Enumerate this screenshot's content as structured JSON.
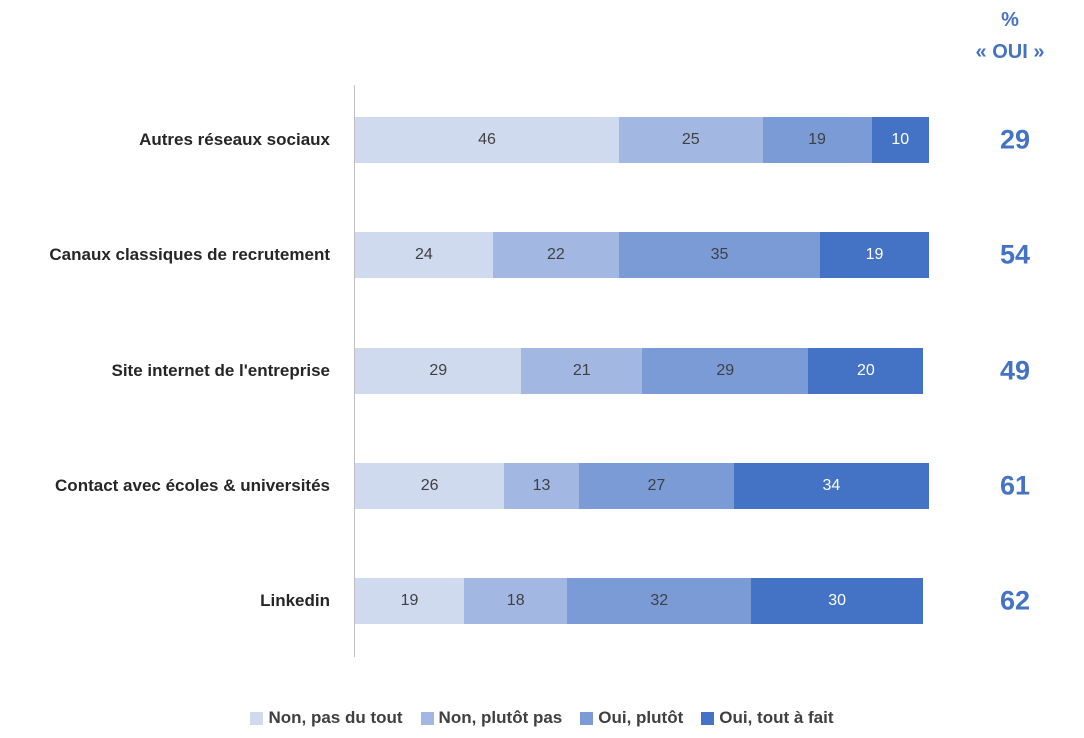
{
  "chart_data": {
    "type": "stacked-bar-horizontal",
    "categories": [
      "Autres réseaux sociaux",
      "Canaux classiques de recrutement",
      "Site internet de l'entreprise",
      "Contact avec écoles & universités",
      "Linkedin"
    ],
    "series": [
      {
        "name": "Non, pas du tout",
        "color": "#cfdaef",
        "values": [
          46,
          24,
          29,
          26,
          19
        ]
      },
      {
        "name": "Non, plutôt pas",
        "color": "#a2b8e2",
        "values": [
          25,
          22,
          21,
          13,
          18
        ]
      },
      {
        "name": "Oui, plutôt",
        "color": "#7b9bd7",
        "values": [
          19,
          35,
          29,
          27,
          32
        ]
      },
      {
        "name": "Oui, tout à fait",
        "color": "#4472c4",
        "values": [
          10,
          19,
          20,
          34,
          30
        ]
      }
    ],
    "xlim": [
      0,
      100
    ],
    "yes_header": [
      "%",
      "« OUI »"
    ],
    "yes_totals": [
      29,
      54,
      49,
      61,
      62
    ],
    "legend": "bottom"
  }
}
